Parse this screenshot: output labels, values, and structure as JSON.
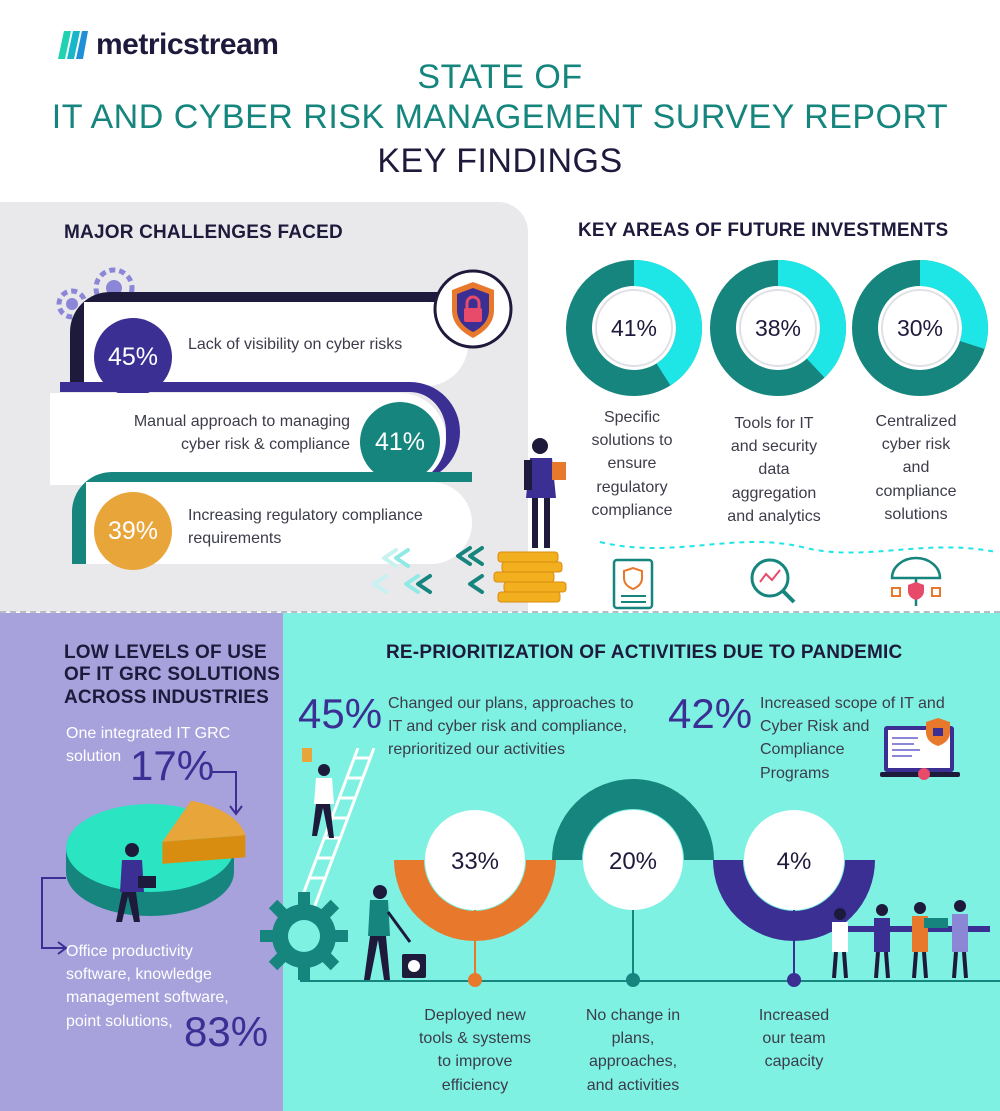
{
  "header": {
    "logo_text": "metricstream",
    "title_line1": "STATE OF",
    "title_line2": "IT AND CYBER RISK MANAGEMENT SURVEY REPORT",
    "title_line3": "KEY FINDINGS"
  },
  "challenges": {
    "heading": "MAJOR CHALLENGES FACED",
    "items": [
      {
        "percent": "45%",
        "text": "Lack of visibility on cyber risks",
        "value": 45
      },
      {
        "percent": "41%",
        "text_line1": "Manual approach to managing",
        "text_line2": "cyber risk & compliance",
        "value": 41
      },
      {
        "percent": "39%",
        "text_line1": "Increasing regulatory compliance",
        "text_line2": "requirements",
        "value": 39
      }
    ]
  },
  "investments": {
    "heading": "KEY AREAS OF FUTURE INVESTMENTS",
    "items": [
      {
        "percent": "41%",
        "value": 41,
        "lines": [
          "Specific",
          "solutions to",
          "ensure",
          "regulatory",
          "compliance"
        ]
      },
      {
        "percent": "38%",
        "value": 38,
        "lines": [
          "Tools for IT",
          "and security",
          "data",
          "aggregation",
          "and analytics"
        ]
      },
      {
        "percent": "30%",
        "value": 30,
        "lines": [
          "Centralized",
          "cyber risk",
          "and",
          "compliance",
          "solutions"
        ]
      }
    ]
  },
  "grc": {
    "heading_line1": "LOW LEVELS OF USE",
    "heading_line2": "OF IT GRC SOLUTIONS",
    "heading_line3": "ACROSS INDUSTRIES",
    "integrated_line1": "One integrated IT GRC",
    "integrated_line2": "solution",
    "integrated_percent": "17%",
    "integrated_value": 17,
    "office_line1": "Office productivity",
    "office_line2": "software, knowledge",
    "office_line3": "management software,",
    "office_line4": "point solutions,",
    "office_percent": "83%",
    "office_value": 83
  },
  "pandemic": {
    "heading": "RE-PRIORITIZATION OF ACTIVITIES DUE TO PANDEMIC",
    "left_percent": "45%",
    "left_lines": [
      "Changed our plans, approaches to",
      "IT and cyber risk and compliance,",
      "reprioritized our activities"
    ],
    "right_percent": "42%",
    "right_lines": [
      "Increased scope of IT and",
      "Cyber Risk and",
      "Compliance",
      "Programs"
    ],
    "rings": [
      {
        "percent": "33%",
        "value": 33,
        "lines": [
          "Deployed new",
          "tools & systems",
          "to improve",
          "efficiency"
        ]
      },
      {
        "percent": "20%",
        "value": 20,
        "lines": [
          "No change in",
          "plans,",
          "approaches,",
          "and activities"
        ]
      },
      {
        "percent": "4%",
        "value": 4,
        "lines": [
          "Increased",
          "our team",
          "capacity"
        ]
      }
    ]
  },
  "colors": {
    "teal": "#15857e",
    "navy": "#1e1a3c",
    "purple": "#3b2f94",
    "orange": "#e8792c",
    "gold": "#e8a53a",
    "cyan": "#1ee6e6",
    "lavender": "#a7a1dc",
    "mint": "#7ef1e2"
  }
}
